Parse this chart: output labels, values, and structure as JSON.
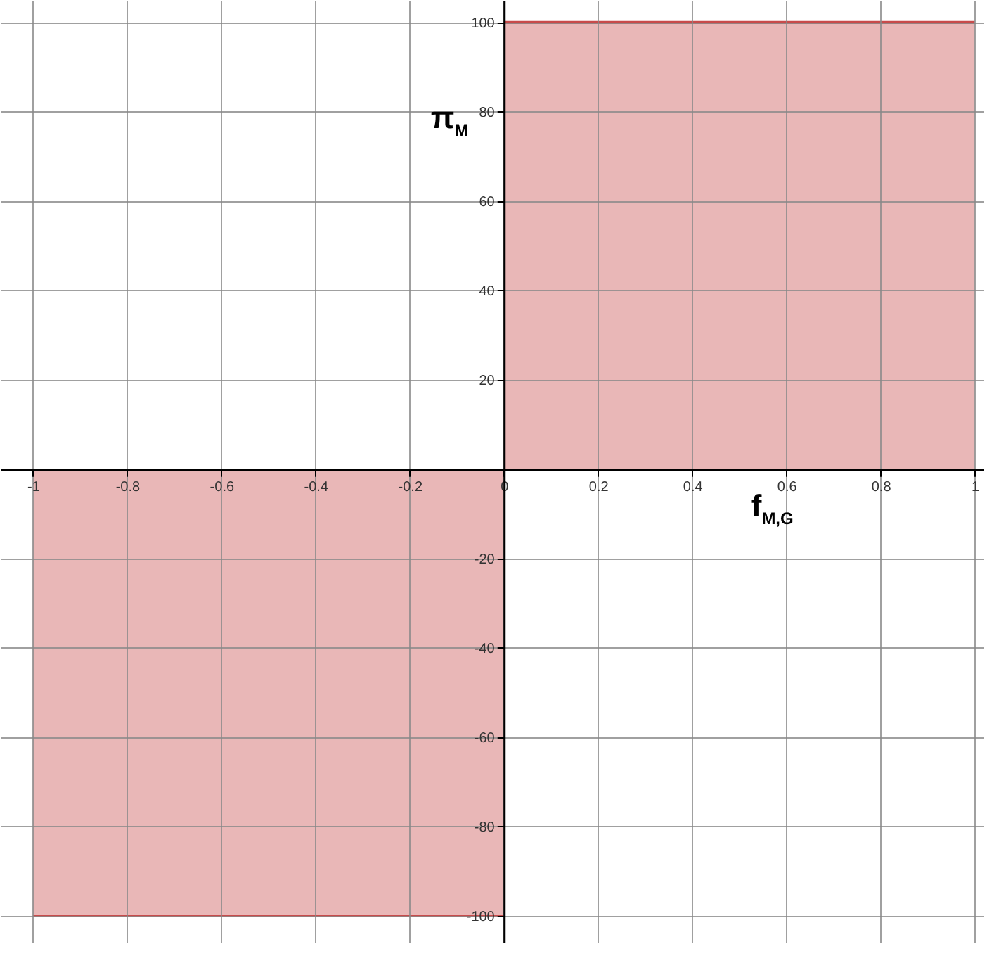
{
  "chart_data": {
    "type": "area",
    "xlabel": "f$_{M,G}$",
    "ylabel": "π$_{M}$",
    "series": [
      {
        "color": "#c84b4b",
        "x": [
          -1,
          0
        ],
        "values": [
          -100,
          -100
        ]
      },
      {
        "color": "#c84b4b",
        "x": [
          0,
          1
        ],
        "values": [
          100,
          100
        ]
      }
    ],
    "xlim": [
      -1.07,
      1.02
    ],
    "ylim": [
      -106,
      105
    ],
    "xticks": [
      -1,
      -0.8,
      -0.6,
      -0.4,
      -0.2,
      0,
      0.2,
      0.4,
      0.6,
      0.8,
      1
    ],
    "yticks": [
      -100,
      -80,
      -60,
      -40,
      -20,
      20,
      40,
      60,
      80,
      100
    ],
    "grid": true
  }
}
